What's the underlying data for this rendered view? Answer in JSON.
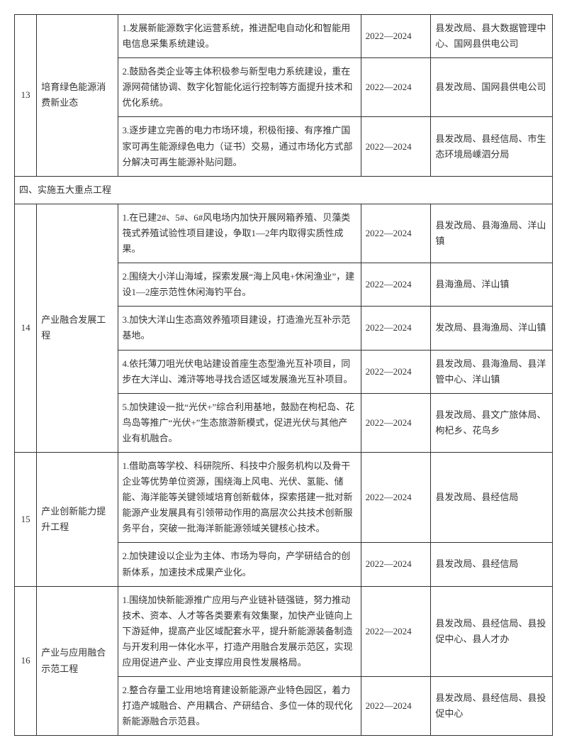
{
  "rows": [
    {
      "type": "data",
      "num": "13",
      "name": "培育绿色能源消费新业态",
      "rowspan": 3,
      "items": [
        {
          "desc": "1.发展新能源数字化运营系统，推进配电自动化和智能用电信息采集系统建设。",
          "year": "2022—2024",
          "dept": "县发改局、县大数据管理中心、国网县供电公司"
        },
        {
          "desc": "2.鼓励各类企业等主体积极参与新型电力系统建设，重在源网荷储协调、数字化智能化运行控制等方面提升技术和优化系统。",
          "year": "2022—2024",
          "dept": "县发改局、国网县供电公司"
        },
        {
          "desc": "3.逐步建立完善的电力市场环境，积极衔接、有序推广国家可再生能源绿色电力（证书）交易，通过市场化方式部分解决可再生能源补贴问题。",
          "year": "2022—2024",
          "dept": "县发改局、县经信局、市生态环境局嵊泗分局"
        }
      ]
    },
    {
      "type": "section",
      "title": "四、实施五大重点工程"
    },
    {
      "type": "data",
      "num": "14",
      "name": "产业融合发展工程",
      "rowspan": 5,
      "items": [
        {
          "desc": "1.在已建2#、5#、6#风电场内加快开展网箱养殖、贝藻类筏式养殖试验性项目建设，争取1—2年内取得实质性成果。",
          "year": "2022—2024",
          "dept": "县发改局、县海渔局、洋山镇"
        },
        {
          "desc": "2.围绕大小洋山海域，探索发展“海上风电+休闲渔业”，建设1—2座示范性休闲海钓平台。",
          "year": "2022—2024",
          "dept": "县海渔局、洋山镇"
        },
        {
          "desc": "3.加快大洋山生态高效养殖项目建设，打造渔光互补示范基地。",
          "year": "2022—2024",
          "dept": "发改局、县海渔局、洋山镇"
        },
        {
          "desc": "4.依托薄刀咀光伏电站建设首座生态型渔光互补项目，同步在大洋山、滩浒等地寻找合适区域发展渔光互补项目。",
          "year": "2022—2024",
          "dept": "县发改局、县海渔局、县洋管中心、洋山镇"
        },
        {
          "desc": "5.加快建设一批“光伏+”综合利用基地，鼓励在枸杞岛、花鸟岛等推广“光伏+”生态旅游新模式，促进光伏与其他产业有机融合。",
          "year": "2022—2024",
          "dept": "县发改局、县文广旅体局、枸杞乡、花鸟乡"
        }
      ]
    },
    {
      "type": "data",
      "num": "15",
      "name": "产业创新能力提升工程",
      "rowspan": 2,
      "items": [
        {
          "desc": "1.借助高等学校、科研院所、科技中介服务机构以及骨干企业等优势单位资源，围绕海上风电、光伏、氢能、储能、海洋能等关键领域培育创新载体，探索搭建一批对新能源产业发展具有引领带动作用的高层次公共技术创新服务平台，突破一批海洋新能源领域关键核心技术。",
          "year": "2022—2024",
          "dept": "县发改局、县经信局"
        },
        {
          "desc": "2.加快建设以企业为主体、市场为导向，产学研结合的创新体系，加速技术成果产业化。",
          "year": "2022—2024",
          "dept": "县发改局、县经信局"
        }
      ]
    },
    {
      "type": "data",
      "num": "16",
      "name": "产业与应用融合示范工程",
      "rowspan": 2,
      "items": [
        {
          "desc": "1.围绕加快新能源推广应用与产业链补链强链，努力推动技术、资本、人才等各类要素有效集聚，加快产业链向上下游延伸，提高产业区域配套水平，提升新能源装备制造与开发利用一体化水平，打造产用融合发展示范区，实现应用促进产业、产业支撑应用良性发展格局。",
          "year": "2022—2024",
          "dept": "县发改局、县经信局、县投促中心、县人才办"
        },
        {
          "desc": "2.整合存量工业用地培育建设新能源产业特色园区，着力打造产城融合、产用耦合、产研结合、多位一体的现代化新能源融合示范县。",
          "year": "2022—2024",
          "dept": "县发改局、县经信局、县投促中心"
        }
      ]
    }
  ]
}
